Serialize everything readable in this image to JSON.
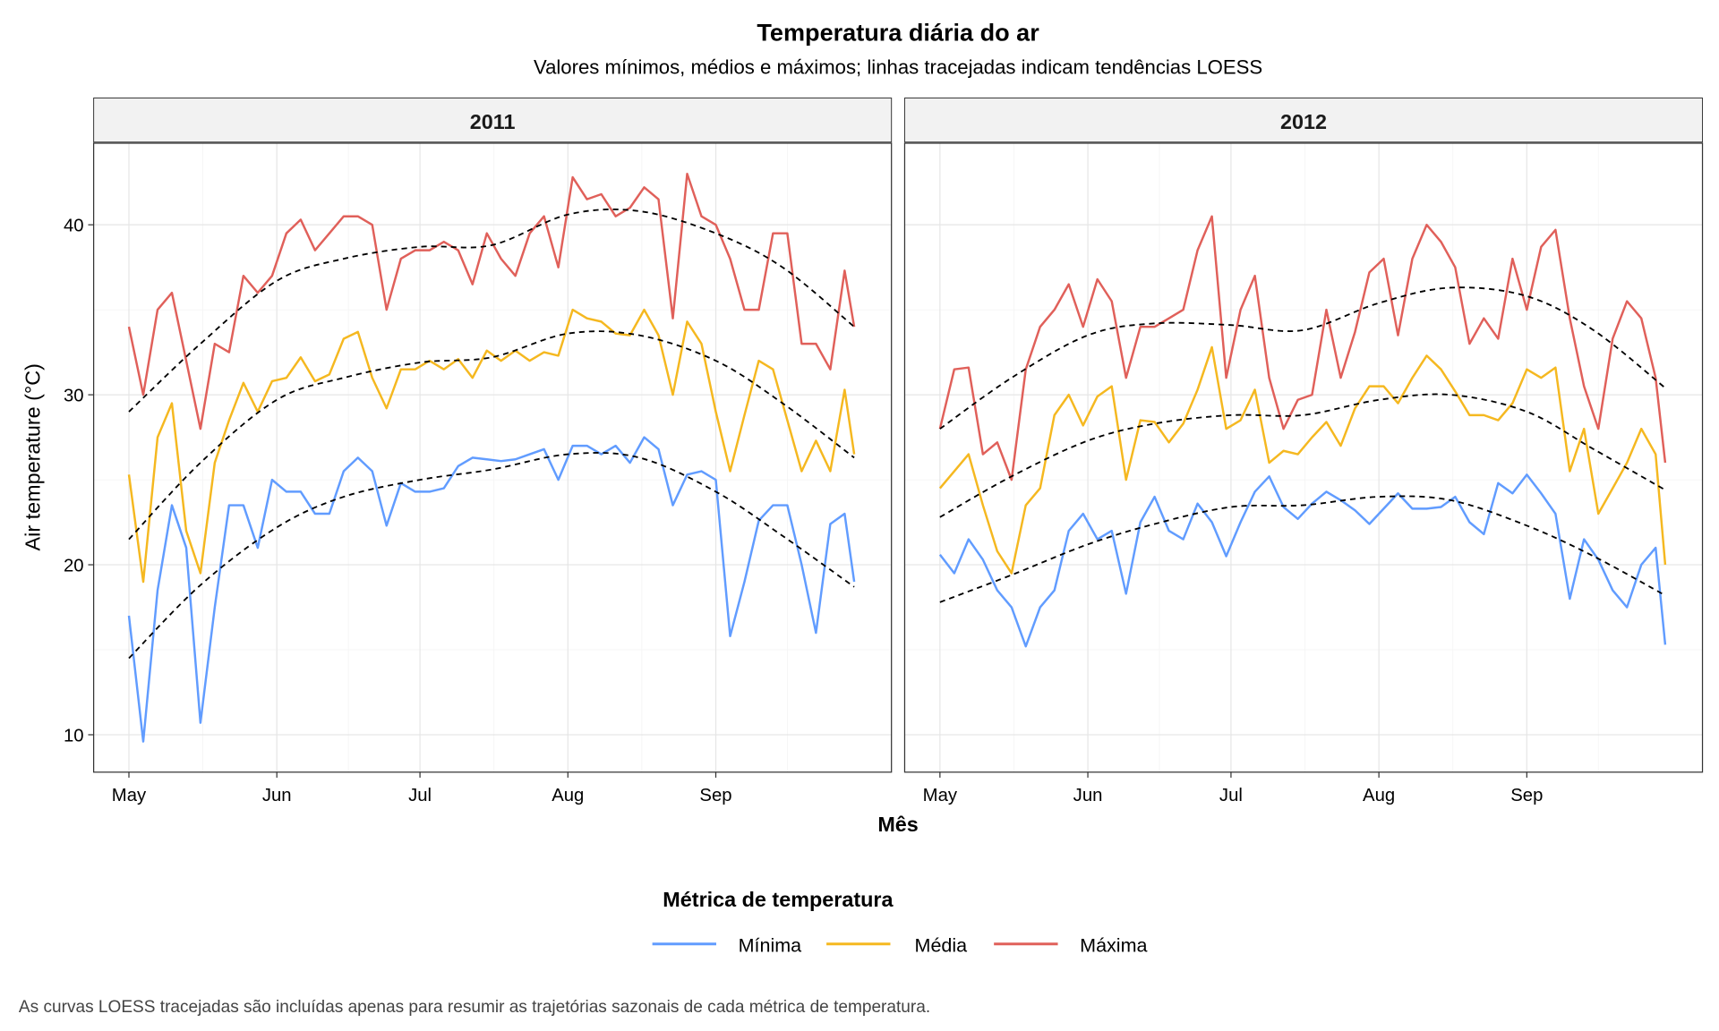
{
  "title": "Temperatura diária do ar",
  "subtitle": "Valores mínimos, médios e máximos; linhas tracejadas indicam tendências LOESS",
  "caption": "As curvas LOESS tracejadas são incluídas apenas para resumir as trajetórias sazonais de cada métrica de temperatura.",
  "chart_data": {
    "type": "line",
    "xlabel": "Mês",
    "ylabel": "Air temperature (°C)",
    "ylim": [
      7.8,
      44.8
    ],
    "yticks": [
      10,
      20,
      30,
      40
    ],
    "ytick_labels": [
      "10",
      "20",
      "30",
      "40"
    ],
    "xtick_labels": [
      "May",
      "Jun",
      "Jul",
      "Aug",
      "Sep"
    ],
    "xtick_dates": [
      "05-01",
      "06-01",
      "07-01",
      "08-01",
      "09-01"
    ],
    "grid": true,
    "legend": {
      "title": "Métrica de temperatura",
      "placement": "bottom",
      "entries": [
        "Mínima",
        "Média",
        "Máxima"
      ]
    },
    "colors": {
      "Mínima": "#619CFF",
      "Média": "#F5B820",
      "Máxima": "#E0605A",
      "LOESS": "#000000"
    },
    "x": [
      "05-01",
      "05-04",
      "05-07",
      "05-10",
      "05-13",
      "05-16",
      "05-19",
      "05-22",
      "05-25",
      "05-28",
      "05-31",
      "06-03",
      "06-06",
      "06-09",
      "06-12",
      "06-15",
      "06-18",
      "06-21",
      "06-24",
      "06-27",
      "06-30",
      "07-03",
      "07-06",
      "07-09",
      "07-12",
      "07-15",
      "07-18",
      "07-21",
      "07-24",
      "07-27",
      "07-30",
      "08-02",
      "08-05",
      "08-08",
      "08-11",
      "08-14",
      "08-17",
      "08-20",
      "08-23",
      "08-26",
      "08-29",
      "09-01",
      "09-04",
      "09-07",
      "09-10",
      "09-13",
      "09-16",
      "09-19",
      "09-22",
      "09-25",
      "09-28",
      "09-30"
    ],
    "loess_x": [
      "05-01",
      "05-16",
      "06-01",
      "06-15",
      "07-01",
      "07-16",
      "08-01",
      "08-16",
      "09-01",
      "09-15",
      "09-30"
    ],
    "facets": [
      {
        "label": "2011",
        "series": [
          {
            "name": "Mínima",
            "values": [
              17,
              9.6,
              18.5,
              23.5,
              21,
              10.7,
              17.5,
              23.5,
              23.5,
              21,
              25,
              24.3,
              24.3,
              23,
              23,
              25.5,
              26.3,
              25.5,
              22.3,
              24.8,
              24.3,
              24.3,
              24.5,
              25.8,
              26.3,
              26.2,
              26.1,
              26.2,
              26.5,
              26.8,
              25,
              27,
              27,
              26.5,
              27,
              26,
              27.5,
              26.8,
              23.5,
              25.3,
              25.5,
              25,
              15.8,
              19,
              22.6,
              23.5,
              23.5,
              20,
              16,
              22.4,
              23,
              19
            ]
          },
          {
            "name": "Média",
            "values": [
              25.3,
              19,
              27.5,
              29.5,
              22,
              19.5,
              26,
              28.5,
              30.7,
              29,
              30.8,
              31,
              32.2,
              30.8,
              31.2,
              33.3,
              33.7,
              31,
              29.2,
              31.5,
              31.5,
              32,
              31.5,
              32.1,
              31,
              32.6,
              32,
              32.6,
              32,
              32.5,
              32.3,
              35,
              34.5,
              34.3,
              33.6,
              33.5,
              35,
              33.5,
              30,
              34.3,
              33,
              29,
              25.5,
              28.8,
              32,
              31.5,
              28.5,
              25.5,
              27.3,
              25.5,
              30.3,
              26.5
            ]
          },
          {
            "name": "Máxima",
            "values": [
              34,
              30,
              35,
              36,
              32,
              28,
              33,
              32.5,
              37,
              36,
              37,
              39.5,
              40.3,
              38.5,
              39.5,
              40.5,
              40.5,
              40,
              35,
              38,
              38.5,
              38.5,
              39,
              38.5,
              36.5,
              39.5,
              38,
              37,
              39.5,
              40.5,
              37.5,
              42.8,
              41.5,
              41.8,
              40.5,
              41,
              42.2,
              41.5,
              34.5,
              43,
              40.5,
              40,
              38,
              35,
              35,
              39.5,
              39.5,
              33,
              33,
              31.5,
              37.3,
              34
            ]
          }
        ],
        "loess": [
          {
            "name": "Mínima",
            "values": [
              14.5,
              18.8,
              22.2,
              24,
              25,
              25.6,
              26.5,
              26.3,
              24.3,
              21.7,
              18.7
            ]
          },
          {
            "name": "Média",
            "values": [
              21.5,
              26,
              29.7,
              31,
              31.9,
              32.2,
              33.6,
              33.5,
              32,
              29.5,
              26.3
            ]
          },
          {
            "name": "Máxima",
            "values": [
              29,
              33,
              36.7,
              38,
              38.7,
              38.8,
              40.6,
              40.8,
              39.5,
              37.5,
              34
            ]
          }
        ]
      },
      {
        "label": "2012",
        "series": [
          {
            "name": "Mínima",
            "values": [
              20.6,
              19.5,
              21.5,
              20.3,
              18.5,
              17.5,
              15.2,
              17.5,
              18.5,
              22,
              23,
              21.5,
              22,
              18.3,
              22.5,
              24,
              22,
              21.5,
              23.6,
              22.5,
              20.5,
              22.5,
              24.3,
              25.2,
              23.4,
              22.7,
              23.6,
              24.3,
              23.8,
              23.2,
              22.4,
              23.3,
              24.2,
              23.3,
              23.3,
              23.4,
              24,
              22.5,
              21.8,
              24.8,
              24.2,
              25.3,
              24.2,
              23,
              18,
              21.5,
              20.3,
              18.5,
              17.5,
              20,
              21,
              15.3
            ]
          },
          {
            "name": "Média",
            "values": [
              24.5,
              25.5,
              26.5,
              23.5,
              20.8,
              19.5,
              23.5,
              24.5,
              28.8,
              30,
              28.2,
              29.9,
              30.5,
              25,
              28.5,
              28.4,
              27.2,
              28.3,
              30.3,
              32.8,
              28,
              28.5,
              30.3,
              26,
              26.7,
              26.5,
              27.5,
              28.4,
              27,
              29.2,
              30.5,
              30.5,
              29.5,
              31,
              32.3,
              31.5,
              30.2,
              28.8,
              28.8,
              28.5,
              29.5,
              31.5,
              31,
              31.6,
              25.5,
              28,
              23,
              24.5,
              26,
              28,
              26.5,
              20
            ]
          },
          {
            "name": "Máxima",
            "values": [
              28,
              31.5,
              31.6,
              26.5,
              27.2,
              25,
              31.5,
              34,
              35,
              36.5,
              34,
              36.8,
              35.5,
              31,
              34,
              34,
              34.5,
              35,
              38.5,
              40.5,
              31,
              35,
              37,
              31,
              28,
              29.7,
              30,
              35,
              31,
              33.7,
              37.2,
              38,
              33.5,
              38,
              40,
              39,
              37.5,
              33,
              34.5,
              33.3,
              38,
              35,
              38.7,
              39.7,
              34.5,
              30.5,
              28,
              33.3,
              35.5,
              34.5,
              31,
              26
            ]
          }
        ],
        "loess": [
          {
            "name": "Mínima",
            "values": [
              17.8,
              19.4,
              21.2,
              22.4,
              23.4,
              23.5,
              24,
              23.8,
              22.3,
              20.5,
              18.2
            ]
          },
          {
            "name": "Média",
            "values": [
              22.8,
              25.2,
              27.3,
              28.3,
              28.8,
              28.8,
              29.7,
              30,
              29,
              26.8,
              24.4
            ]
          },
          {
            "name": "Máxima",
            "values": [
              28,
              31,
              33.5,
              34.2,
              34.1,
              33.8,
              35.4,
              36.3,
              35.8,
              33.8,
              30.4
            ]
          }
        ]
      }
    ]
  }
}
